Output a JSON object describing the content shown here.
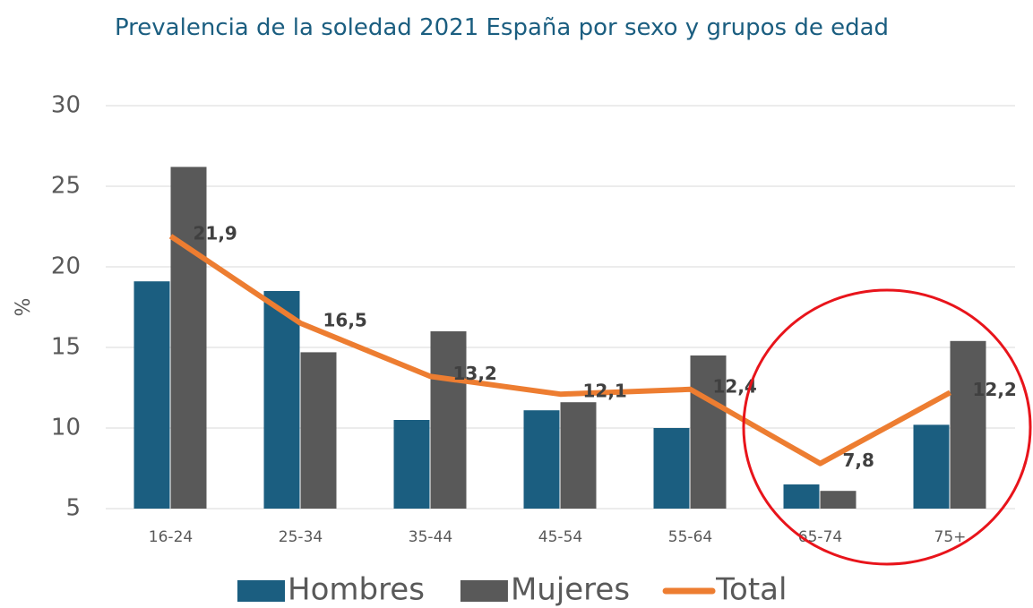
{
  "chart_data": {
    "type": "bar_line",
    "title": "Prevalencia de la soledad 2021 España por  sexo y grupos de edad",
    "y_label": "%",
    "categories": [
      "16-24",
      "25-34",
      "35-44",
      "45-54",
      "55-64",
      "65-74",
      "75+"
    ],
    "series": [
      {
        "name": "Hombres",
        "type": "bar",
        "color": "#1b5e80",
        "values": [
          19.1,
          18.5,
          10.5,
          11.1,
          10.0,
          6.5,
          10.2
        ]
      },
      {
        "name": "Mujeres",
        "type": "bar",
        "color": "#595959",
        "values": [
          26.2,
          14.7,
          16.0,
          11.6,
          14.5,
          6.1,
          15.4
        ]
      },
      {
        "name": "Total",
        "type": "line",
        "color": "#ed7d31",
        "values": [
          21.9,
          16.5,
          13.2,
          12.1,
          12.4,
          7.8,
          12.2
        ],
        "value_labels": [
          "21,9",
          "16,5",
          "13,2",
          "12,1",
          "12,4",
          "7,8",
          "12,2"
        ]
      }
    ],
    "ylim": [
      5,
      30
    ],
    "yticks": [
      5,
      10,
      15,
      20,
      25,
      30
    ],
    "grid": true,
    "legend": "bottom"
  }
}
